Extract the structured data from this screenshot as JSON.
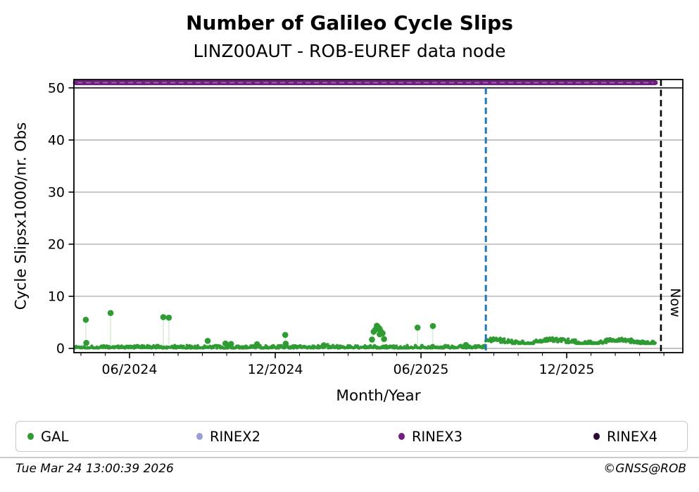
{
  "header": {
    "title": "Number of Galileo Cycle Slips",
    "subtitle": "LINZ00AUT - ROB-EUREF data node"
  },
  "footer": {
    "timestamp": "Tue Mar 24 13:00:39 2026",
    "credit": "©GNSS@ROB"
  },
  "legend": {
    "items": [
      {
        "label": "GAL",
        "color": "#2e9b33"
      },
      {
        "label": "RINEX2",
        "color": "#9b9bd7"
      },
      {
        "label": "RINEX3",
        "color": "#701f7e"
      },
      {
        "label": "RINEX4",
        "color": "#2d0a33"
      }
    ]
  },
  "chart_data": {
    "type": "scatter",
    "title": "Number of Galileo Cycle Slips",
    "subtitle": "LINZ00AUT - ROB-EUREF data node",
    "xlabel": "Month/Year",
    "ylabel": "Cycle Slipsx1000/nr. Obs",
    "grid": "horizontal-only",
    "legend_position": "bottom",
    "x_axis": {
      "unit": "months since 2024-01-01",
      "min": 2.71,
      "max": 27.78,
      "major_ticks": [
        {
          "m": 5,
          "label": "06/2024"
        },
        {
          "m": 11,
          "label": "12/2024"
        },
        {
          "m": 17,
          "label": "06/2025"
        },
        {
          "m": 23,
          "label": "12/2025"
        }
      ],
      "minor_start": 3,
      "minor_end": 27,
      "minor_step": 1
    },
    "y_axis": {
      "min": -0.81,
      "max": 51.6,
      "ticks": [
        0,
        10,
        20,
        30,
        40,
        50
      ],
      "grid_values": [
        0,
        10,
        20,
        30,
        40
      ],
      "grid_color": "#b0b0b0"
    },
    "threshold_line": {
      "value": 50,
      "color": "#000000"
    },
    "series": [
      {
        "name": "GAL",
        "type": "scatter-dense",
        "color": "#2e9b33",
        "stem_color": "rgba(46,155,51,0.18)",
        "baseline_bands": [
          {
            "m_start": 2.77,
            "m_end": 19.67,
            "v_low": 0.05,
            "v_high": 0.6,
            "note": "dense daily values ~0.1-0.5 from Apr 2024 until ~21 Aug 2025"
          },
          {
            "m_start": 19.67,
            "m_end": 26.65,
            "v_low": 0.95,
            "v_high": 2.25,
            "note": "dense daily values ~1.0-2.2 after step change until late Mar 2026"
          }
        ],
        "outliers": [
          [
            3.2,
            5.5,
            1
          ],
          [
            3.22,
            1.05,
            0
          ],
          [
            4.22,
            6.8,
            1
          ],
          [
            6.39,
            6.0,
            1
          ],
          [
            6.62,
            5.9,
            1
          ],
          [
            8.22,
            1.45,
            0
          ],
          [
            8.95,
            0.95,
            0
          ],
          [
            9.18,
            0.85,
            0
          ],
          [
            10.25,
            0.8,
            0
          ],
          [
            11.41,
            2.6,
            1
          ],
          [
            11.43,
            0.9,
            0
          ],
          [
            13.0,
            0.6,
            0
          ],
          [
            14.98,
            1.7,
            0
          ],
          [
            15.05,
            3.2,
            1
          ],
          [
            15.12,
            3.6,
            0
          ],
          [
            15.18,
            4.35,
            0
          ],
          [
            15.23,
            4.1,
            0
          ],
          [
            15.29,
            3.8,
            0
          ],
          [
            15.34,
            3.3,
            0
          ],
          [
            15.3,
            2.7,
            0
          ],
          [
            15.42,
            2.9,
            1
          ],
          [
            15.48,
            1.8,
            0
          ],
          [
            16.86,
            4.0,
            1
          ],
          [
            17.49,
            4.3,
            1
          ],
          [
            18.85,
            0.65,
            0
          ]
        ]
      },
      {
        "name": "RINEX2",
        "type": "scatter",
        "color": "#9b9bd7",
        "points": []
      },
      {
        "name": "RINEX3",
        "type": "line",
        "color": "#701f7e",
        "value": 51,
        "m_start": 2.77,
        "m_end": 26.65
      },
      {
        "name": "RINEX4",
        "type": "scatter",
        "color": "#2d0a33",
        "points": []
      }
    ],
    "annotations": {
      "event_line": {
        "m": 19.67,
        "color": "#1f77b4",
        "style": "dashed"
      },
      "now_line": {
        "m": 26.88,
        "color": "#000000",
        "style": "dashed",
        "label": "Now"
      }
    },
    "noise_seed": 1337
  }
}
